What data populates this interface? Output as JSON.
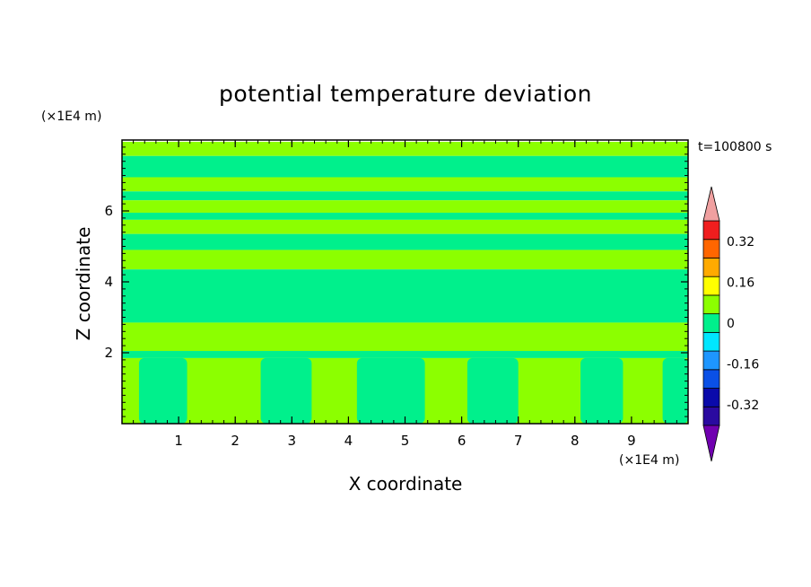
{
  "chart_data": {
    "type": "heatmap",
    "title": "potential temperature deviation",
    "xlabel": "X coordinate",
    "ylabel": "Z coordinate",
    "x_units": "(×1E4 m)",
    "y_units": "(×1E4 m)",
    "time_label": "t=100800 s",
    "xlim": [
      0,
      10
    ],
    "ylim": [
      0,
      8
    ],
    "x_ticks": [
      "1",
      "2",
      "3",
      "4",
      "5",
      "6",
      "7",
      "8",
      "9"
    ],
    "y_ticks": [
      "2",
      "4",
      "6"
    ],
    "colorbar": {
      "levels": [
        -0.4,
        -0.32,
        -0.24,
        -0.16,
        -0.08,
        0,
        0.08,
        0.16,
        0.24,
        0.32,
        0.4
      ],
      "labels": [
        "0.32",
        "0.16",
        "0",
        "-0.16",
        "-0.32"
      ],
      "label_values": [
        0.32,
        0.16,
        0,
        -0.16,
        -0.32
      ],
      "colors": [
        "#2a0aa0",
        "#0a0aaa",
        "#0a50e6",
        "#1e96ff",
        "#00e6ff",
        "#00f08c",
        "#8cff00",
        "#ffff00",
        "#ffaa00",
        "#ff6600",
        "#f01e1e"
      ],
      "over_color": "#f0a0a0",
      "under_color": "#7000b0"
    },
    "fields": {
      "positive_band_color": "#8cff00",
      "negative_band_color": "#00f08c"
    },
    "horizontal_bands": [
      {
        "z": [
          7.55,
          7.95
        ],
        "sign": "positive"
      },
      {
        "z": [
          6.95,
          7.55
        ],
        "sign": "negative"
      },
      {
        "z": [
          6.55,
          6.95
        ],
        "sign": "positive"
      },
      {
        "z": [
          6.3,
          6.55
        ],
        "sign": "negative"
      },
      {
        "z": [
          5.95,
          6.3
        ],
        "sign": "positive"
      },
      {
        "z": [
          5.75,
          5.95
        ],
        "sign": "negative"
      },
      {
        "z": [
          5.35,
          5.75
        ],
        "sign": "positive"
      },
      {
        "z": [
          4.9,
          5.35
        ],
        "sign": "negative"
      },
      {
        "z": [
          4.35,
          4.9
        ],
        "sign": "positive"
      },
      {
        "z": [
          2.85,
          4.35
        ],
        "sign": "negative"
      },
      {
        "z": [
          2.05,
          2.85
        ],
        "sign": "positive"
      },
      {
        "z": [
          1.85,
          2.05
        ],
        "sign": "negative"
      },
      {
        "z": [
          0,
          1.85
        ],
        "sign": "positive"
      }
    ],
    "lower_columns": [
      {
        "x": [
          0.3,
          1.15
        ]
      },
      {
        "x": [
          2.45,
          3.35
        ]
      },
      {
        "x": [
          4.15,
          5.35
        ]
      },
      {
        "x": [
          6.1,
          7.0
        ]
      },
      {
        "x": [
          8.1,
          8.85
        ]
      },
      {
        "x": [
          9.55,
          10.0
        ]
      }
    ]
  }
}
